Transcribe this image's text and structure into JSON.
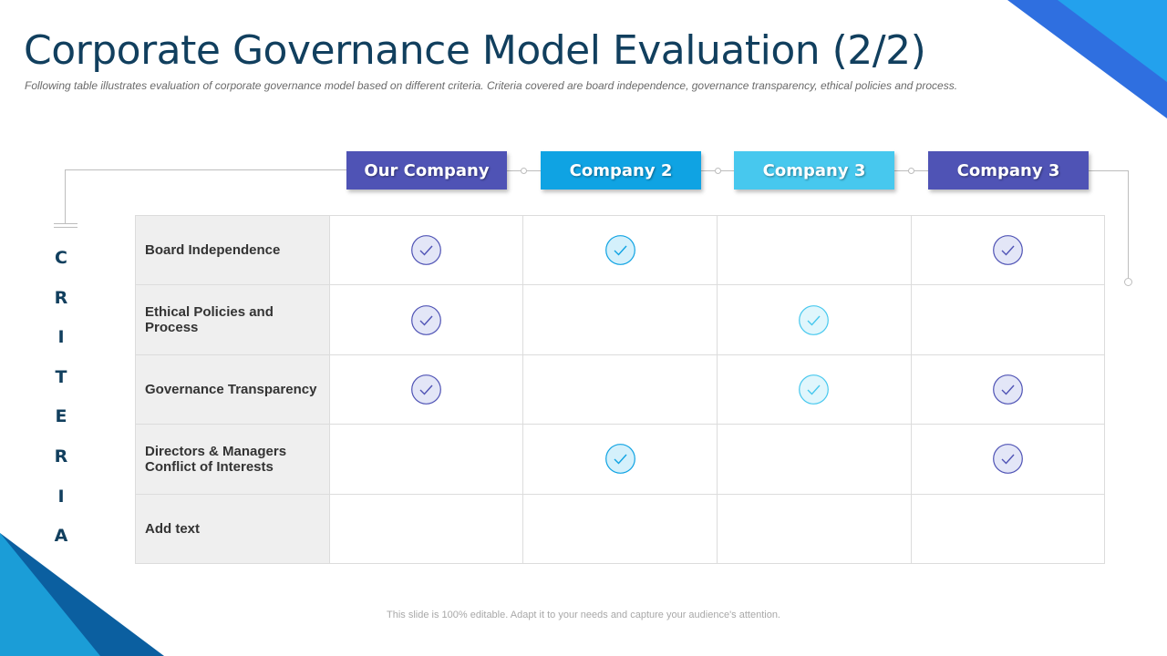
{
  "title": "Corporate Governance Model Evaluation (2/2)",
  "subtitle": "Following table illustrates evaluation of corporate governance model based on different criteria. Criteria covered are board independence, governance transparency, ethical policies and process.",
  "criteria_letters": [
    "C",
    "R",
    "I",
    "T",
    "E",
    "R",
    "I",
    "A"
  ],
  "columns": [
    {
      "label": "Our Company",
      "color": "#4f53b5"
    },
    {
      "label": "Company 2",
      "color": "#0fa3e3"
    },
    {
      "label": "Company 3",
      "color": "#47c8ee"
    },
    {
      "label": "Company 3",
      "color": "#4f53b5"
    }
  ],
  "rows": [
    {
      "label": "Board Independence",
      "checks": [
        true,
        true,
        false,
        true
      ]
    },
    {
      "label": "Ethical Policies and Process",
      "checks": [
        true,
        false,
        true,
        false
      ]
    },
    {
      "label": "Governance Transparency",
      "checks": [
        true,
        false,
        true,
        true
      ]
    },
    {
      "label": "Directors & Managers Conflict of Interests",
      "checks": [
        false,
        true,
        false,
        true
      ]
    },
    {
      "label": "Add text",
      "checks": [
        false,
        false,
        false,
        false
      ]
    }
  ],
  "check_styles": [
    {
      "fill": "#e3e6f7",
      "stroke": "#4f53b5"
    },
    {
      "fill": "#d4f0fb",
      "stroke": "#0fa3e3"
    },
    {
      "fill": "#e0f6fc",
      "stroke": "#47c8ee"
    },
    {
      "fill": "#e3e6f7",
      "stroke": "#4f53b5"
    }
  ],
  "check_icon": "checkmark-circle-icon",
  "footer": "This slide is 100% editable. Adapt it to your needs and capture your audience's attention."
}
